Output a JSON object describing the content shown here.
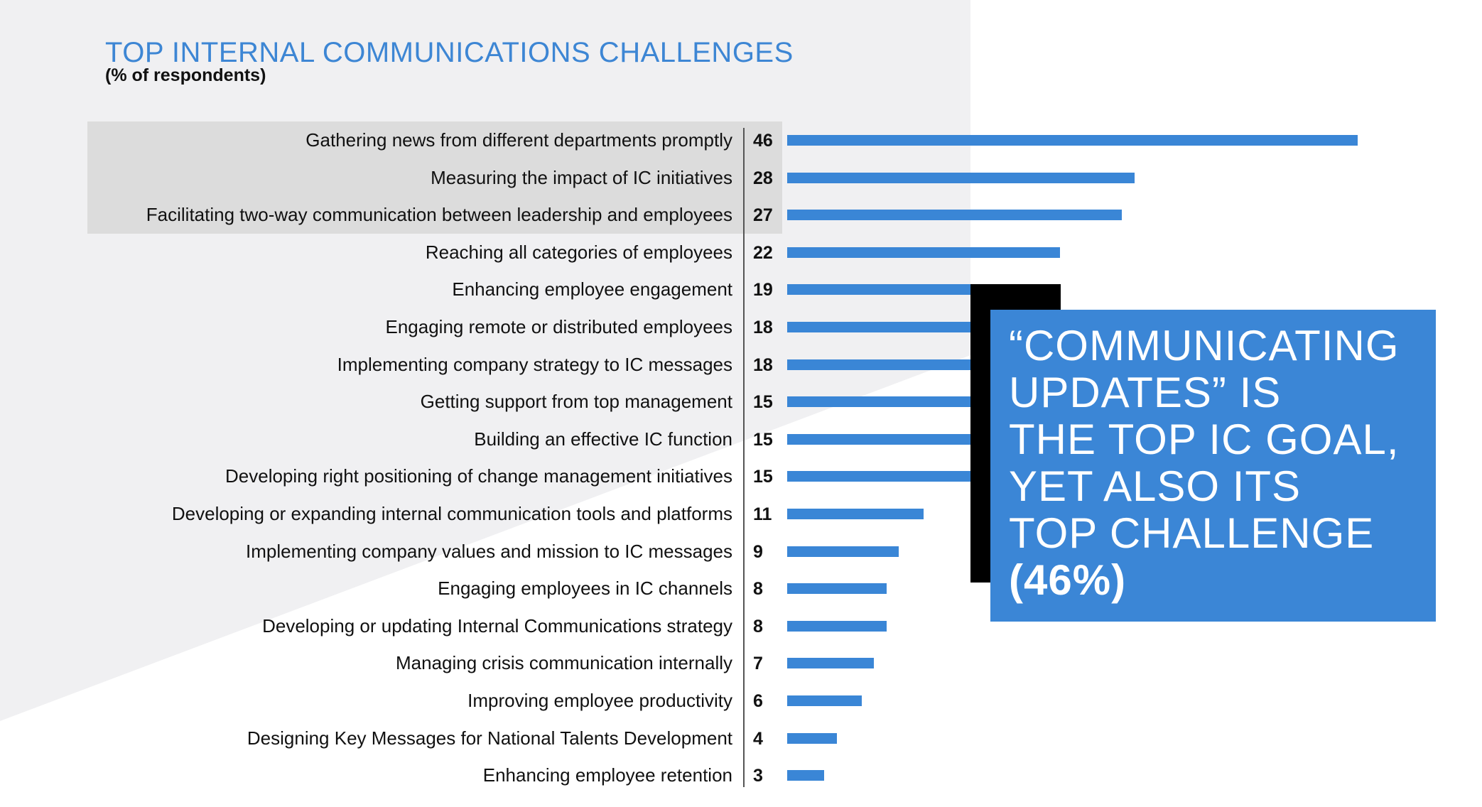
{
  "chart_data": {
    "type": "bar",
    "orientation": "horizontal",
    "title": "TOP INTERNAL COMMUNICATIONS CHALLENGES",
    "subtitle": "(% of respondents)",
    "xlim": [
      0,
      60
    ],
    "grid": false,
    "categories": [
      "Gathering news from different departments promptly",
      "Measuring the impact of IC initiatives",
      "Facilitating two-way communication between leadership and employees",
      "Reaching all categories of employees",
      "Enhancing employee engagement",
      "Engaging remote or distributed employees",
      "Implementing company strategy to IC messages",
      "Getting support from top management",
      "Building an effective IC function",
      "Developing right positioning of change management initiatives",
      "Developing or expanding internal communication tools and platforms",
      "Implementing company values and mission to IC messages",
      "Engaging employees in IC channels",
      "Developing or updating Internal Communications strategy",
      "Managing crisis communication internally",
      "Improving employee productivity",
      "Designing Key Messages for National Talents Development",
      "Enhancing employee retention"
    ],
    "values": [
      46,
      28,
      27,
      22,
      19,
      18,
      18,
      15,
      15,
      15,
      11,
      9,
      8,
      8,
      7,
      6,
      4,
      3
    ],
    "highlighted_top": 3,
    "colors": {
      "bar": "#3a86d6",
      "title": "#3d86d4",
      "highlight_band": "#dcdcdc",
      "callout": "#3b86d6"
    }
  },
  "callout": {
    "lines": [
      "“COMMUNICATING",
      "UPDATES” IS",
      "THE TOP IC GOAL,",
      "YET ALSO ITS",
      "TOP CHALLENGE"
    ],
    "emphasis": "(46%)"
  }
}
